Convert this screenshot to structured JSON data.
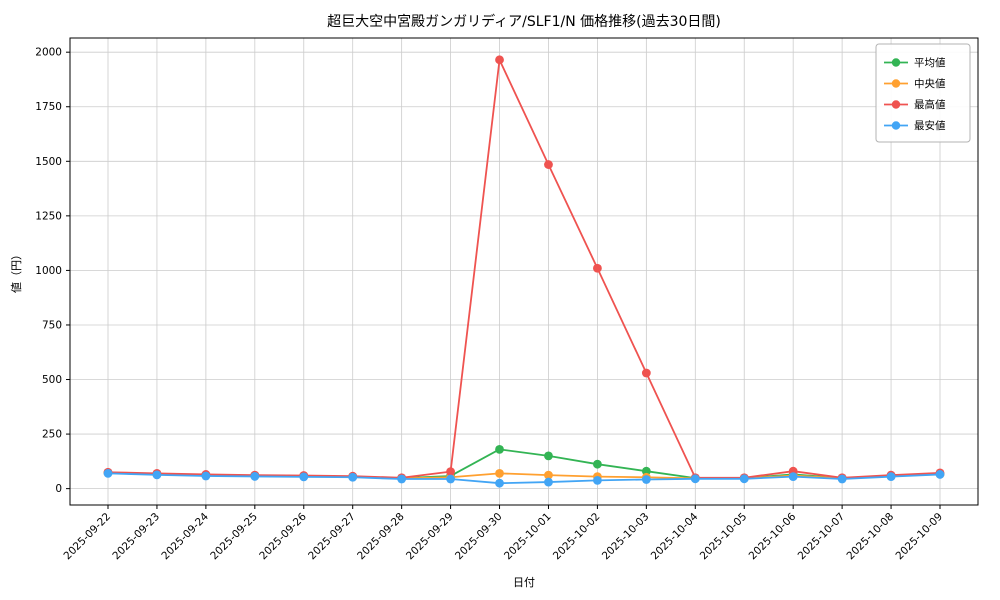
{
  "chart_data": {
    "type": "line",
    "title": "超巨大空中宮殿ガンガリディア/SLF1/N 価格推移(過去30日間)",
    "xlabel": "日付",
    "ylabel": "値（円）",
    "grid": true,
    "legend_position": "top-right",
    "ylim": [
      -75,
      2065
    ],
    "yticks": [
      0,
      250,
      500,
      750,
      1000,
      1250,
      1500,
      1750,
      2000
    ],
    "categories": [
      "2025-09-22",
      "2025-09-23",
      "2025-09-24",
      "2025-09-25",
      "2025-09-26",
      "2025-09-27",
      "2025-09-28",
      "2025-09-29",
      "2025-09-30",
      "2025-10-01",
      "2025-10-02",
      "2025-10-03",
      "2025-10-04",
      "2025-10-05",
      "2025-10-06",
      "2025-10-07",
      "2025-10-08",
      "2025-10-09"
    ],
    "series": [
      {
        "name": "平均値",
        "color": "#33b454",
        "values": [
          73,
          67,
          62,
          60,
          58,
          55,
          48,
          58,
          180,
          150,
          112,
          80,
          48,
          48,
          65,
          48,
          58,
          68
        ]
      },
      {
        "name": "中央値",
        "color": "#ffa030",
        "values": [
          72,
          66,
          61,
          59,
          57,
          54,
          47,
          52,
          70,
          62,
          55,
          52,
          47,
          47,
          60,
          47,
          57,
          66
        ]
      },
      {
        "name": "最高値",
        "color": "#ef5350",
        "values": [
          75,
          70,
          65,
          62,
          60,
          57,
          50,
          78,
          1965,
          1485,
          1010,
          530,
          50,
          50,
          80,
          50,
          62,
          72
        ]
      },
      {
        "name": "最安値",
        "color": "#42a5f5",
        "values": [
          70,
          63,
          58,
          56,
          54,
          52,
          44,
          44,
          25,
          30,
          38,
          42,
          45,
          45,
          55,
          44,
          55,
          65
        ]
      }
    ],
    "style": {
      "grid_color": "#cccccc",
      "spine_color": "#000000",
      "legend_border_color": "#b3b3b3",
      "background_color": "#ffffff"
    }
  }
}
